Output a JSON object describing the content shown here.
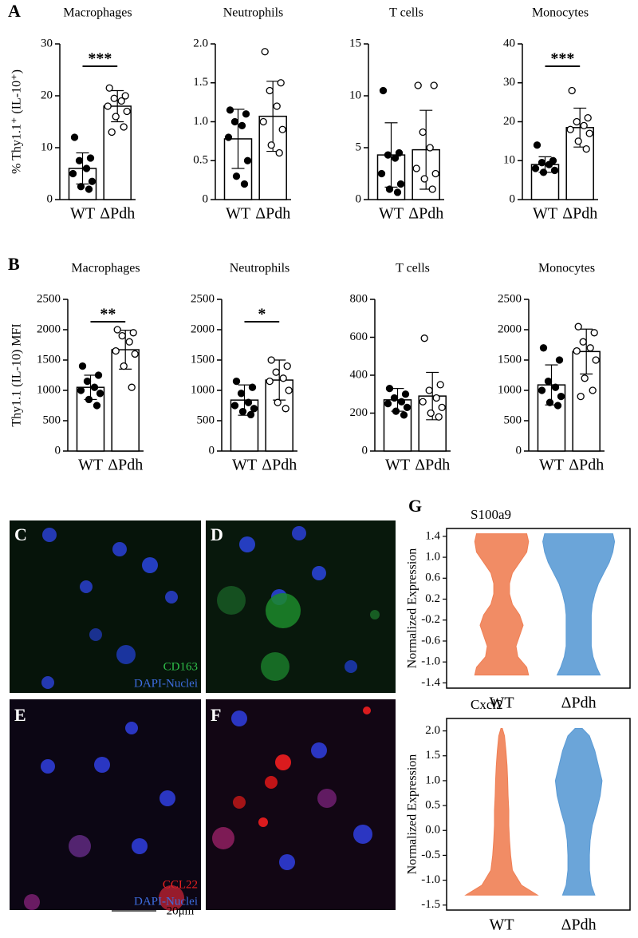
{
  "panel_labels": [
    "A",
    "B",
    "C",
    "D",
    "E",
    "F",
    "G"
  ],
  "chart_data": [
    {
      "type": "bar",
      "title": "Macrophages",
      "ylabel": "% Thy1.1⁺ (IL-10⁺)",
      "categories": [
        "WT",
        "ΔPdh"
      ],
      "values": [
        6,
        18
      ],
      "errors": [
        3,
        3
      ],
      "points": [
        [
          12,
          8,
          7.5,
          6,
          5,
          3.5,
          2.5,
          2
        ],
        [
          21.5,
          20,
          19.5,
          19,
          18,
          17,
          16,
          14,
          13
        ]
      ],
      "point_fill": [
        "#000000",
        "#ffffff"
      ],
      "ylim": [
        0,
        30
      ],
      "yticks": [
        0,
        10,
        20,
        30
      ],
      "significance": "***"
    },
    {
      "type": "bar",
      "title": "Neutrophils",
      "categories": [
        "WT",
        "ΔPdh"
      ],
      "values": [
        0.78,
        1.07
      ],
      "errors": [
        0.38,
        0.45
      ],
      "points": [
        [
          1.15,
          1.1,
          1.0,
          0.95,
          0.8,
          0.5,
          0.3,
          0.2
        ],
        [
          1.9,
          1.5,
          1.4,
          1.2,
          1.0,
          0.9,
          0.7,
          0.6
        ]
      ],
      "point_fill": [
        "#000000",
        "#ffffff"
      ],
      "ylim": [
        0,
        2
      ],
      "yticks": [
        0,
        0.5,
        {
          "value": 1,
          "label": "1.0"
        },
        1.5,
        {
          "value": 2,
          "label": "2.0"
        }
      ]
    },
    {
      "type": "bar",
      "title": "T cells",
      "categories": [
        "WT",
        "ΔPdh"
      ],
      "values": [
        4.3,
        4.8
      ],
      "errors": [
        3.1,
        3.8
      ],
      "points": [
        [
          10.5,
          4.5,
          4.3,
          4,
          2.5,
          1.5,
          1,
          0.7
        ],
        [
          11,
          11,
          6.5,
          5,
          3,
          2.5,
          2,
          1
        ]
      ],
      "point_fill": [
        "#000000",
        "#ffffff"
      ],
      "ylim": [
        0,
        15
      ],
      "yticks": [
        0,
        5,
        10,
        15
      ]
    },
    {
      "type": "bar",
      "title": "Monocytes",
      "categories": [
        "WT",
        "ΔPdh"
      ],
      "values": [
        9,
        18.5
      ],
      "errors": [
        2,
        5
      ],
      "points": [
        [
          14,
          10,
          9.5,
          9,
          8,
          7.5,
          7
        ],
        [
          28,
          21,
          20,
          19,
          18,
          17,
          15,
          13
        ]
      ],
      "point_fill": [
        "#000000",
        "#ffffff"
      ],
      "ylim": [
        0,
        40
      ],
      "yticks": [
        0,
        10,
        20,
        30,
        40
      ],
      "significance": "***"
    },
    {
      "type": "bar",
      "title": "Macrophages",
      "ylabel": "Thy1.1 (IL-10) MFI",
      "categories": [
        "WT",
        "ΔPdh"
      ],
      "values": [
        1050,
        1670
      ],
      "errors": [
        200,
        320
      ],
      "points": [
        [
          1400,
          1250,
          1150,
          1050,
          1000,
          950,
          850,
          750
        ],
        [
          2000,
          1950,
          1900,
          1800,
          1650,
          1600,
          1400,
          1050
        ]
      ],
      "point_fill": [
        "#000000",
        "#ffffff"
      ],
      "ylim": [
        0,
        2500
      ],
      "yticks": [
        0,
        500,
        1000,
        1500,
        2000,
        2500
      ],
      "significance": "**"
    },
    {
      "type": "bar",
      "title": "Neutrophils",
      "categories": [
        "WT",
        "ΔPdh"
      ],
      "values": [
        840,
        1170
      ],
      "errors": [
        250,
        330
      ],
      "points": [
        [
          1150,
          1050,
          950,
          800,
          750,
          700,
          650,
          600
        ],
        [
          1500,
          1400,
          1300,
          1200,
          1150,
          1000,
          800,
          700
        ]
      ],
      "point_fill": [
        "#000000",
        "#ffffff"
      ],
      "ylim": [
        0,
        2500
      ],
      "yticks": [
        0,
        500,
        1000,
        1500,
        2000,
        2500
      ],
      "significance": "*"
    },
    {
      "type": "bar",
      "title": "T cells",
      "categories": [
        "WT",
        "ΔPdh"
      ],
      "values": [
        270,
        290
      ],
      "errors": [
        60,
        125
      ],
      "points": [
        [
          330,
          300,
          280,
          260,
          250,
          230,
          210,
          190
        ],
        [
          595,
          350,
          320,
          280,
          260,
          230,
          200,
          180
        ]
      ],
      "point_fill": [
        "#000000",
        "#ffffff"
      ],
      "ylim": [
        0,
        800
      ],
      "yticks": [
        0,
        200,
        400,
        600,
        800
      ]
    },
    {
      "type": "bar",
      "title": "Monocytes",
      "categories": [
        "WT",
        "ΔPdh"
      ],
      "values": [
        1090,
        1640
      ],
      "errors": [
        330,
        370
      ],
      "points": [
        [
          1700,
          1500,
          1150,
          1050,
          1000,
          900,
          800,
          750
        ],
        [
          2050,
          1950,
          1800,
          1700,
          1650,
          1500,
          1200,
          1000,
          900
        ]
      ],
      "point_fill": [
        "#000000",
        "#ffffff"
      ],
      "ylim": [
        0,
        2500
      ],
      "yticks": [
        0,
        500,
        1000,
        1500,
        2000,
        2500
      ]
    },
    {
      "type": "violin",
      "title": "S100a9",
      "ylabel": "Normalized Expression",
      "categories": [
        "WT",
        "ΔPdh"
      ],
      "ylim": [
        -1.5,
        1.55
      ],
      "yticks": [
        -1.4,
        {
          "value": -1,
          "label": "-1.0"
        },
        -0.6,
        -0.2,
        0.2,
        0.6,
        {
          "value": 1,
          "label": "1.0"
        },
        1.4
      ],
      "density_y": [
        -1.25,
        -1.1,
        -0.9,
        -0.7,
        -0.5,
        -0.3,
        -0.1,
        0.1,
        0.3,
        0.5,
        0.7,
        0.9,
        1.1,
        1.3,
        1.45
      ],
      "series": [
        {
          "name": "WT",
          "color": "#f07f54",
          "density": [
            0.75,
            0.7,
            0.45,
            0.4,
            0.5,
            0.6,
            0.5,
            0.3,
            0.22,
            0.22,
            0.3,
            0.5,
            0.7,
            0.75,
            0.7
          ]
        },
        {
          "name": "ΔPdh",
          "color": "#5b9bd5",
          "density": [
            0.6,
            0.5,
            0.4,
            0.35,
            0.35,
            0.35,
            0.35,
            0.38,
            0.45,
            0.55,
            0.7,
            0.85,
            0.95,
            1.0,
            0.95
          ]
        }
      ]
    },
    {
      "type": "violin",
      "title": "Cxcl2",
      "ylabel": "Normalized Expression",
      "categories": [
        "WT",
        "ΔPdh"
      ],
      "ylim": [
        -1.6,
        2.25
      ],
      "yticks": [
        -1.5,
        {
          "value": -1,
          "label": "-1.0"
        },
        -0.5,
        {
          "value": 0,
          "label": "0.0"
        },
        0.5,
        {
          "value": 1,
          "label": "1.0"
        },
        1.5,
        {
          "value": 2,
          "label": "2.0"
        }
      ],
      "density_y": [
        -1.3,
        -1.1,
        -0.8,
        -0.5,
        -0.2,
        0.1,
        0.4,
        0.7,
        1.0,
        1.3,
        1.6,
        1.9,
        2.05
      ],
      "series": [
        {
          "name": "WT",
          "color": "#f07f54",
          "density": [
            1.0,
            0.55,
            0.3,
            0.25,
            0.22,
            0.2,
            0.2,
            0.18,
            0.17,
            0.15,
            0.12,
            0.08,
            0.02
          ]
        },
        {
          "name": "ΔPdh",
          "color": "#5b9bd5",
          "density": [
            0.45,
            0.35,
            0.3,
            0.3,
            0.32,
            0.38,
            0.5,
            0.6,
            0.65,
            0.55,
            0.45,
            0.3,
            0.1
          ]
        }
      ]
    }
  ],
  "images": [
    {
      "marker": "CD163",
      "nuclei": "DAPI-Nuclei"
    },
    {
      "marker": "CCL22",
      "nuclei": "DAPI-Nuclei"
    }
  ],
  "scale_bar": "20μm"
}
